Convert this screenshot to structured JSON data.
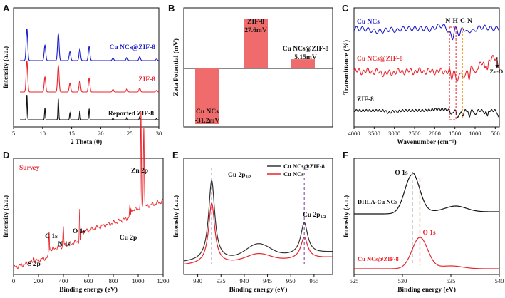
{
  "chart_data": [
    {
      "panel": "A",
      "type": "line",
      "xlabel": "2 Theta (θ)",
      "ylabel": "Intensity (a.u.)",
      "xlim": [
        5,
        30
      ],
      "xticks": [
        "5",
        "10",
        "15",
        "20",
        "25",
        "30"
      ],
      "series": [
        {
          "name": "Cu NCs@ZIF-8",
          "color": "#1a1acc",
          "peaks": [
            7.3,
            10.4,
            12.7,
            14.7,
            16.4,
            18.0,
            22.1,
            24.5,
            26.7,
            29.6
          ]
        },
        {
          "name": "ZIF-8",
          "color": "#e8242b",
          "peaks": [
            7.3,
            10.4,
            12.7,
            14.7,
            16.4,
            18.0,
            22.1,
            24.5,
            26.7,
            29.6
          ]
        },
        {
          "name": "Reported ZIF-8",
          "color": "#111111",
          "peaks": [
            7.3,
            10.4,
            12.7,
            14.7,
            16.4,
            18.0,
            22.1,
            24.5,
            26.7,
            29.6
          ]
        }
      ]
    },
    {
      "panel": "B",
      "type": "bar",
      "ylabel": "Zeta Potential (mV)",
      "categories": [
        "Cu NCs",
        "ZIF-8",
        "Cu NCs@ZIF-8"
      ],
      "values": [
        -31.2,
        27.6,
        5.15
      ],
      "value_labels": [
        "-31.2mV",
        "27.6mV",
        "5.15mV"
      ],
      "color": "#f06b6b",
      "ylim": [
        -40,
        40
      ]
    },
    {
      "panel": "C",
      "type": "line",
      "xlabel": "Wavenumber (cm⁻¹)",
      "ylabel": "Transmittance (%)",
      "xlim": [
        4000,
        400
      ],
      "xticks": [
        "4000",
        "3500",
        "3000",
        "2500",
        "2000",
        "1500",
        "1000",
        "500"
      ],
      "series": [
        {
          "name": "Cu NCs",
          "color": "#1a1acc"
        },
        {
          "name": "Cu NCs@ZIF-8",
          "color": "#e8242b"
        },
        {
          "name": "ZIF-8",
          "color": "#111111"
        }
      ],
      "markers": [
        {
          "label": "N-H",
          "x": 1580,
          "color": "#e8242b"
        },
        {
          "label": "C-N",
          "x": 1310,
          "color": "#f0a030"
        },
        {
          "label": "Zn-O",
          "x": 420,
          "color": "#111111"
        }
      ]
    },
    {
      "panel": "D",
      "type": "line",
      "title": "Survey",
      "xlabel": "Binding energy (eV)",
      "ylabel": "Intensity (a.u.)",
      "xlim": [
        0,
        1200
      ],
      "xticks": [
        "0",
        "200",
        "400",
        "600",
        "800",
        "1000",
        "1200"
      ],
      "color": "#e8242b",
      "peaks": [
        {
          "label": "S 2p",
          "x": 163
        },
        {
          "label": "C 1s",
          "x": 285
        },
        {
          "label": "N 1s",
          "x": 399
        },
        {
          "label": "O 1s",
          "x": 531
        },
        {
          "label": "Cu 2p",
          "x": 933
        },
        {
          "label": "Zn 2p",
          "x": 1022
        }
      ]
    },
    {
      "panel": "E",
      "type": "line",
      "xlabel": "Binding energy (eV)",
      "ylabel": "Intensity (a.u.)",
      "xlim": [
        927,
        959
      ],
      "xticks": [
        "930",
        "935",
        "940",
        "945",
        "950",
        "955"
      ],
      "series": [
        {
          "name": "Cu NCs@ZIF-8",
          "color": "#333333"
        },
        {
          "name": "Cu NCs",
          "color": "#e8242b"
        }
      ],
      "peaks": [
        {
          "label": "Cu 2p",
          "sub": "3/2",
          "x": 933.0
        },
        {
          "label": "Cu 2p",
          "sub": "1/2",
          "x": 952.9
        }
      ]
    },
    {
      "panel": "F",
      "type": "line",
      "xlabel": "Binding energy (eV)",
      "ylabel": "Intensity (a.u.)",
      "xlim": [
        525,
        540
      ],
      "xticks": [
        "525",
        "530",
        "535",
        "540"
      ],
      "series": [
        {
          "name": "DHLA-Cu NCs",
          "color": "#111111",
          "peak": 531.0,
          "label": "O 1s"
        },
        {
          "name": "Cu NCs@ZIF-8",
          "color": "#e8242b",
          "peak": 531.8,
          "label": "O 1s"
        }
      ]
    }
  ],
  "panels": {
    "A": {
      "label": "A",
      "legend": [
        "Cu NCs@ZIF-8",
        "ZIF-8",
        "Reported ZIF-8"
      ]
    },
    "B": {
      "label": "B",
      "bar_names": [
        "Cu NCs",
        "ZIF-8",
        "Cu NCs@ZIF-8"
      ],
      "bar_values": [
        "-31.2mV",
        "27.6mV",
        "5.15mV"
      ]
    },
    "C": {
      "label": "C"
    },
    "D": {
      "label": "D"
    },
    "E": {
      "label": "E"
    },
    "F": {
      "label": "F"
    }
  }
}
